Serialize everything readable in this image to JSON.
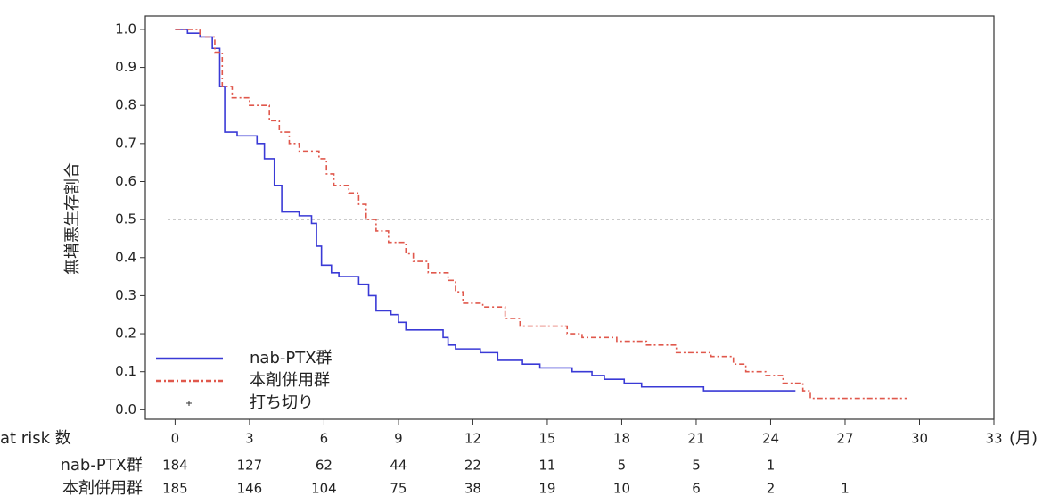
{
  "chart_data": {
    "type": "step",
    "ylabel": "無増悪生存割合",
    "x_unit": "(月)",
    "xlim": [
      -1.2,
      33
    ],
    "xticks": [
      0,
      3,
      6,
      9,
      12,
      15,
      18,
      21,
      24,
      27,
      30,
      33
    ],
    "ylim": [
      -0.025,
      1.035
    ],
    "yticks": [
      {
        "value": 0,
        "label": "0.0"
      },
      0.1,
      0.2,
      0.3,
      0.4,
      0.5,
      0.6,
      0.7,
      0.8,
      0.9,
      {
        "value": 1,
        "label": "1.0"
      }
    ],
    "reference_line": 0.5,
    "legend_position": "lower left",
    "censor_label": "打ち切り",
    "series": [
      {
        "name": "nab-PTX群",
        "color": "#3a3ad6",
        "dash": "none",
        "x": [
          0,
          0.5,
          1,
          1.5,
          1.8,
          2.0,
          2.5,
          3.3,
          3.6,
          4.0,
          4.3,
          5.0,
          5.5,
          5.7,
          5.9,
          6.3,
          6.6,
          7.4,
          7.8,
          8.1,
          8.7,
          9.0,
          9.3,
          10.8,
          11.0,
          11.3,
          12.3,
          13.0,
          14.0,
          14.7,
          16.0,
          16.8,
          17.3,
          18.1,
          18.8,
          21.3,
          25.0
        ],
        "values": [
          1.0,
          0.99,
          0.98,
          0.95,
          0.85,
          0.73,
          0.72,
          0.7,
          0.66,
          0.59,
          0.52,
          0.51,
          0.49,
          0.43,
          0.38,
          0.36,
          0.35,
          0.33,
          0.3,
          0.26,
          0.25,
          0.23,
          0.21,
          0.19,
          0.17,
          0.16,
          0.15,
          0.13,
          0.12,
          0.11,
          0.1,
          0.09,
          0.08,
          0.07,
          0.06,
          0.05,
          0.05
        ],
        "at_risk": [
          184,
          127,
          62,
          44,
          22,
          11,
          5,
          5,
          1
        ]
      },
      {
        "name": "本剤併用群",
        "color": "#e0584c",
        "dash": "6 3 2 3",
        "x": [
          0,
          1,
          1.6,
          1.9,
          2.3,
          3.0,
          3.8,
          4.2,
          4.6,
          5.0,
          5.8,
          6.1,
          6.4,
          7.0,
          7.4,
          7.7,
          8.1,
          8.6,
          9.3,
          9.6,
          10.2,
          11.0,
          11.3,
          11.6,
          12.4,
          13.3,
          13.9,
          15.8,
          16.4,
          17.8,
          19.0,
          20.2,
          21.6,
          22.5,
          23.0,
          23.8,
          24.5,
          25.3,
          25.6,
          29.5
        ],
        "values": [
          1.0,
          0.98,
          0.94,
          0.85,
          0.82,
          0.8,
          0.76,
          0.73,
          0.7,
          0.68,
          0.66,
          0.62,
          0.59,
          0.57,
          0.54,
          0.5,
          0.47,
          0.44,
          0.41,
          0.39,
          0.36,
          0.34,
          0.31,
          0.28,
          0.27,
          0.24,
          0.22,
          0.2,
          0.19,
          0.18,
          0.17,
          0.15,
          0.14,
          0.12,
          0.1,
          0.09,
          0.07,
          0.05,
          0.03,
          0.03
        ],
        "at_risk": [
          185,
          146,
          104,
          75,
          38,
          19,
          10,
          6,
          2,
          1
        ]
      }
    ],
    "at_risk_label": "at risk 数"
  }
}
